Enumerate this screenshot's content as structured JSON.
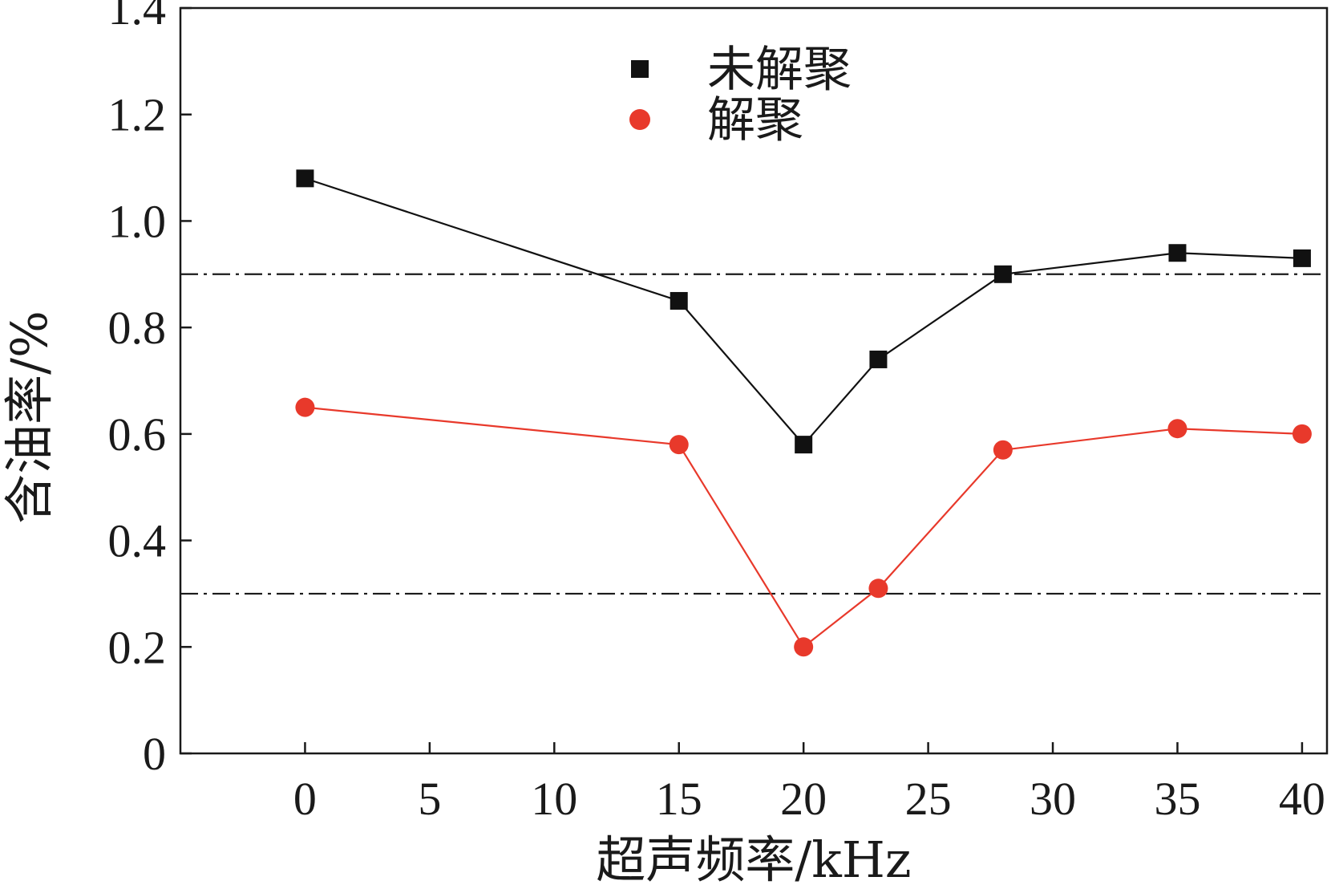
{
  "chart_data": {
    "type": "line",
    "xlabel": "超声频率/kHz",
    "ylabel": "含油率/%",
    "xlim": [
      -5,
      41
    ],
    "ylim": [
      0,
      1.4
    ],
    "xticks": [
      0,
      5,
      10,
      15,
      20,
      25,
      30,
      35,
      40
    ],
    "yticks": [
      0,
      0.2,
      0.4,
      0.6,
      0.8,
      1.0,
      1.2,
      1.4
    ],
    "xtick_labels": [
      "0",
      "5",
      "10",
      "15",
      "20",
      "25",
      "30",
      "35",
      "40"
    ],
    "ytick_labels": [
      "0",
      "0.2",
      "0.4",
      "0.6",
      "0.8",
      "1.0",
      "1.2",
      "1.4"
    ],
    "grid": false,
    "legend_position": "top-center",
    "reference_lines": [
      {
        "y": 0.9,
        "style": "dash-dot",
        "color": "#1a1a1a"
      },
      {
        "y": 0.3,
        "style": "dash-dot",
        "color": "#1a1a1a"
      }
    ],
    "series": [
      {
        "name": "未解聚",
        "marker": "square",
        "color": "#111111",
        "x": [
          0,
          15,
          20,
          23,
          28,
          35,
          40
        ],
        "y": [
          1.08,
          0.85,
          0.58,
          0.74,
          0.9,
          0.94,
          0.93
        ]
      },
      {
        "name": "解聚",
        "marker": "circle",
        "color": "#e8392b",
        "x": [
          0,
          15,
          20,
          23,
          28,
          35,
          40
        ],
        "y": [
          0.65,
          0.58,
          0.2,
          0.31,
          0.57,
          0.61,
          0.6
        ]
      }
    ]
  }
}
